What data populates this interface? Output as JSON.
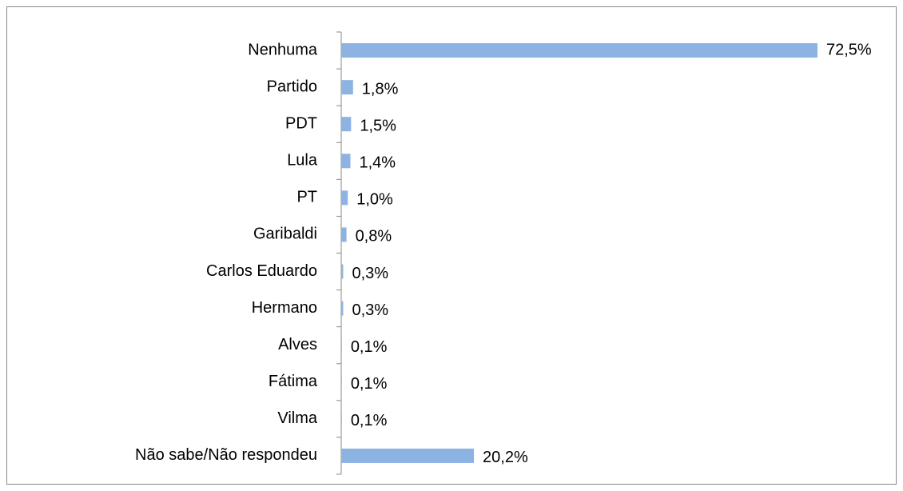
{
  "chart_data": {
    "type": "bar",
    "orientation": "horizontal",
    "categories": [
      "Nenhuma",
      "Partido",
      "PDT",
      "Lula",
      "PT",
      "Garibaldi",
      "Carlos Eduardo",
      "Hermano",
      "Alves",
      "Fátima",
      "Vilma",
      "Não sabe/Não respondeu"
    ],
    "values": [
      72.5,
      1.8,
      1.5,
      1.4,
      1.0,
      0.8,
      0.3,
      0.3,
      0.1,
      0.1,
      0.1,
      20.2
    ],
    "value_labels": [
      "72,5%",
      "1,8%",
      "1,5%",
      "1,4%",
      "1,0%",
      "0,8%",
      "0,3%",
      "0,3%",
      "0,1%",
      "0,1%",
      "0,1%",
      "20,2%"
    ],
    "color": "#8db3e2"
  }
}
